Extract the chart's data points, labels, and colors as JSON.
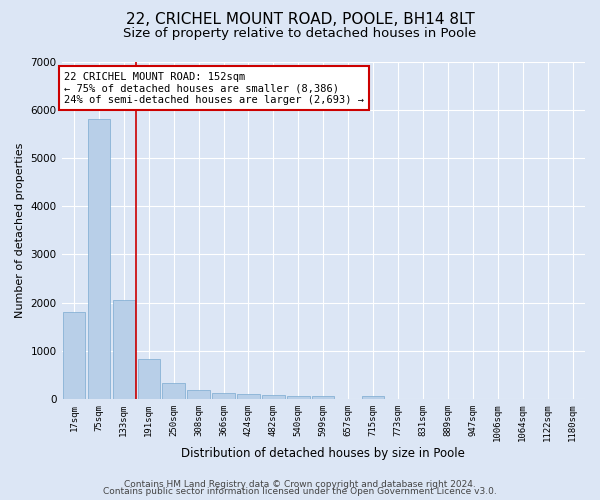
{
  "title1": "22, CRICHEL MOUNT ROAD, POOLE, BH14 8LT",
  "title2": "Size of property relative to detached houses in Poole",
  "xlabel": "Distribution of detached houses by size in Poole",
  "ylabel": "Number of detached properties",
  "bar_labels": [
    "17sqm",
    "75sqm",
    "133sqm",
    "191sqm",
    "250sqm",
    "308sqm",
    "366sqm",
    "424sqm",
    "482sqm",
    "540sqm",
    "599sqm",
    "657sqm",
    "715sqm",
    "773sqm",
    "831sqm",
    "889sqm",
    "947sqm",
    "1006sqm",
    "1064sqm",
    "1122sqm",
    "1180sqm"
  ],
  "bar_values": [
    1800,
    5800,
    2060,
    830,
    335,
    190,
    120,
    100,
    80,
    70,
    55,
    5,
    70,
    0,
    0,
    0,
    0,
    0,
    0,
    0,
    0
  ],
  "bar_color": "#b8cfe8",
  "bar_edge_color": "#7aaad0",
  "red_line_index": 2,
  "red_line_color": "#cc0000",
  "annotation_text": "22 CRICHEL MOUNT ROAD: 152sqm\n← 75% of detached houses are smaller (8,386)\n24% of semi-detached houses are larger (2,693) →",
  "annotation_box_color": "#ffffff",
  "annotation_box_edge_color": "#cc0000",
  "ylim": [
    0,
    7000
  ],
  "yticks": [
    0,
    1000,
    2000,
    3000,
    4000,
    5000,
    6000,
    7000
  ],
  "footer1": "Contains HM Land Registry data © Crown copyright and database right 2024.",
  "footer2": "Contains public sector information licensed under the Open Government Licence v3.0.",
  "bg_color": "#dce6f5",
  "grid_color": "#ffffff",
  "title1_fontsize": 11,
  "title2_fontsize": 9.5,
  "annotation_fontsize": 7.5,
  "footer_fontsize": 6.5,
  "ylabel_fontsize": 8,
  "xlabel_fontsize": 8.5
}
